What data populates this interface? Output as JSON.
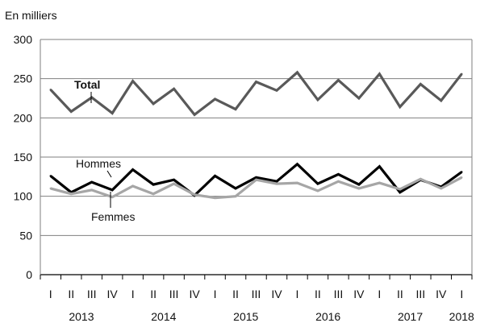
{
  "chart_data": {
    "type": "line",
    "unit_label": "En milliers",
    "title": "",
    "xlabel": "",
    "ylabel": "",
    "ylim": [
      0,
      300
    ],
    "yticks": [
      0,
      50,
      100,
      150,
      200,
      250,
      300
    ],
    "grid": true,
    "quarters": [
      "I",
      "II",
      "III",
      "IV",
      "I",
      "II",
      "III",
      "IV",
      "I",
      "II",
      "III",
      "IV",
      "I",
      "II",
      "III",
      "IV",
      "I",
      "II",
      "III",
      "IV",
      "I"
    ],
    "years": [
      {
        "label": "2013",
        "start": 0,
        "end": 3
      },
      {
        "label": "2014",
        "start": 4,
        "end": 7
      },
      {
        "label": "2015",
        "start": 8,
        "end": 11
      },
      {
        "label": "2016",
        "start": 12,
        "end": 15
      },
      {
        "label": "2017",
        "start": 16,
        "end": 19
      },
      {
        "label": "2018",
        "start": 20,
        "end": 20
      }
    ],
    "series": [
      {
        "name": "Total",
        "color": "#595959",
        "values": [
          236,
          208,
          226,
          206,
          247,
          218,
          237,
          204,
          224,
          211,
          246,
          235,
          258,
          223,
          248,
          225,
          256,
          214,
          243,
          222,
          256
        ]
      },
      {
        "name": "Hommes",
        "color": "#000000",
        "values": [
          126,
          105,
          118,
          108,
          134,
          115,
          121,
          101,
          126,
          110,
          124,
          119,
          141,
          116,
          128,
          115,
          138,
          105,
          121,
          112,
          131
        ]
      },
      {
        "name": "Femmes",
        "color": "#a6a6a6",
        "values": [
          110,
          103,
          108,
          99,
          113,
          103,
          116,
          102,
          98,
          100,
          121,
          116,
          117,
          107,
          119,
          110,
          117,
          109,
          122,
          110,
          124
        ]
      }
    ]
  }
}
